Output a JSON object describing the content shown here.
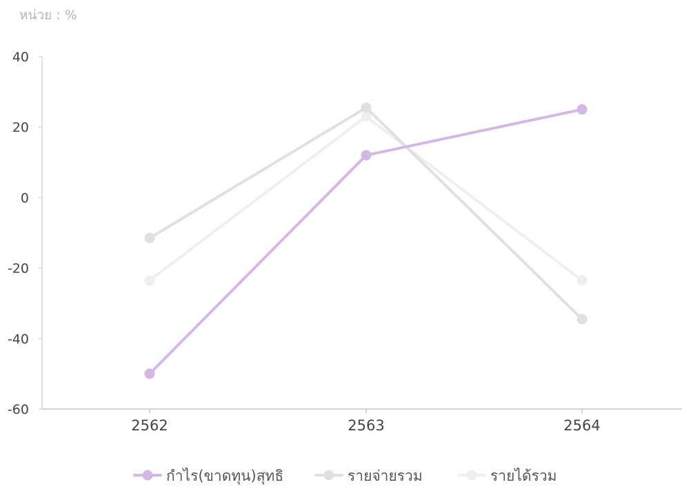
{
  "unit_label": "หน่วย : %",
  "chart_data": {
    "type": "line",
    "categories": [
      "2562",
      "2563",
      "2564"
    ],
    "series": [
      {
        "name": "รายได้รวม",
        "values": [
          -23.5,
          23,
          -23.5
        ],
        "color": "#efefef"
      },
      {
        "name": "รายจ่ายรวม",
        "values": [
          -11.5,
          25.5,
          -34.5
        ],
        "color": "#e0e0e0"
      },
      {
        "name": "กำไร(ขาดทุน)สุทธิ",
        "values": [
          -50,
          12,
          25
        ],
        "color": "#d2b8e2"
      }
    ],
    "legend_order": [
      2,
      1,
      0
    ],
    "y_ticks": [
      40,
      20,
      0,
      -20,
      -40,
      -60
    ],
    "ylim": [
      -60,
      40
    ],
    "xlabel": "",
    "ylabel": "",
    "grid": false,
    "legend_position": "bottom"
  }
}
